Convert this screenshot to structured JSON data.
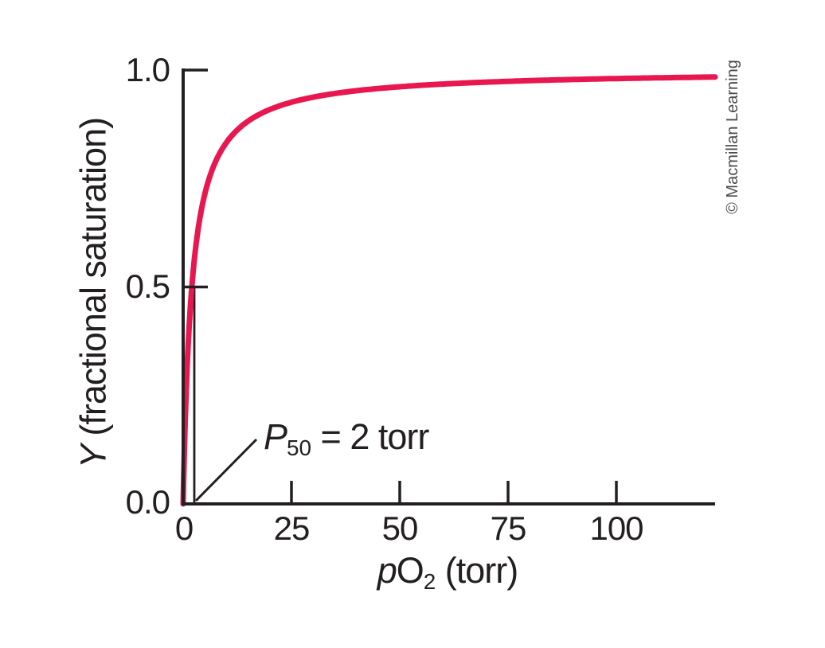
{
  "figure": {
    "background": "#ffffff",
    "credit": "© Macmillan Learning"
  },
  "colors": {
    "curve": "#e81750",
    "ink": "#231f20",
    "credit_gray": "#4b4b4d"
  },
  "chart_data": {
    "type": "line",
    "title": "",
    "xlabel_parts": {
      "var": "p",
      "species": "O",
      "sub": "2",
      "unit": " (torr)"
    },
    "xlabel_plain": "pO2 (torr)",
    "ylabel_parts": {
      "var": "Y",
      "rest": " (fractional saturation)"
    },
    "ylabel_plain": "Y (fractional saturation)",
    "xlim": [
      0,
      122.8
    ],
    "ylim": [
      0,
      1.0
    ],
    "x_ticks": [
      25,
      50,
      75,
      100
    ],
    "x_tick_labels": [
      "0",
      "25",
      "50",
      "75",
      "100"
    ],
    "y_ticks": [
      1.0,
      0.5
    ],
    "y_tick_labels": [
      "1.0",
      "0.5",
      "0.0"
    ],
    "grid": false,
    "legend": "none",
    "series": [
      {
        "name": "oxygen-binding saturation curve (hyperbolic, myoglobin-like)",
        "model": "Y = pO2 / (p50 + pO2)",
        "p50_torr": 2,
        "color": "#e81750",
        "sample_points": [
          {
            "pO2": 0,
            "Y": 0.0
          },
          {
            "pO2": 2,
            "Y": 0.5
          },
          {
            "pO2": 10,
            "Y": 0.83
          },
          {
            "pO2": 25,
            "Y": 0.93
          },
          {
            "pO2": 50,
            "Y": 0.96
          },
          {
            "pO2": 100,
            "Y": 0.98
          },
          {
            "pO2": 122.8,
            "Y": 0.984
          }
        ]
      }
    ],
    "annotation": {
      "parts": {
        "var": "P",
        "sub": "50",
        "rest": " = 2 torr"
      },
      "plain": "P50 = 2 torr",
      "value_torr": 2,
      "marker": "thin vertical line at pO2 = 2 from Y = 0 up to Y = 0.5, leader line from axis to label"
    }
  }
}
